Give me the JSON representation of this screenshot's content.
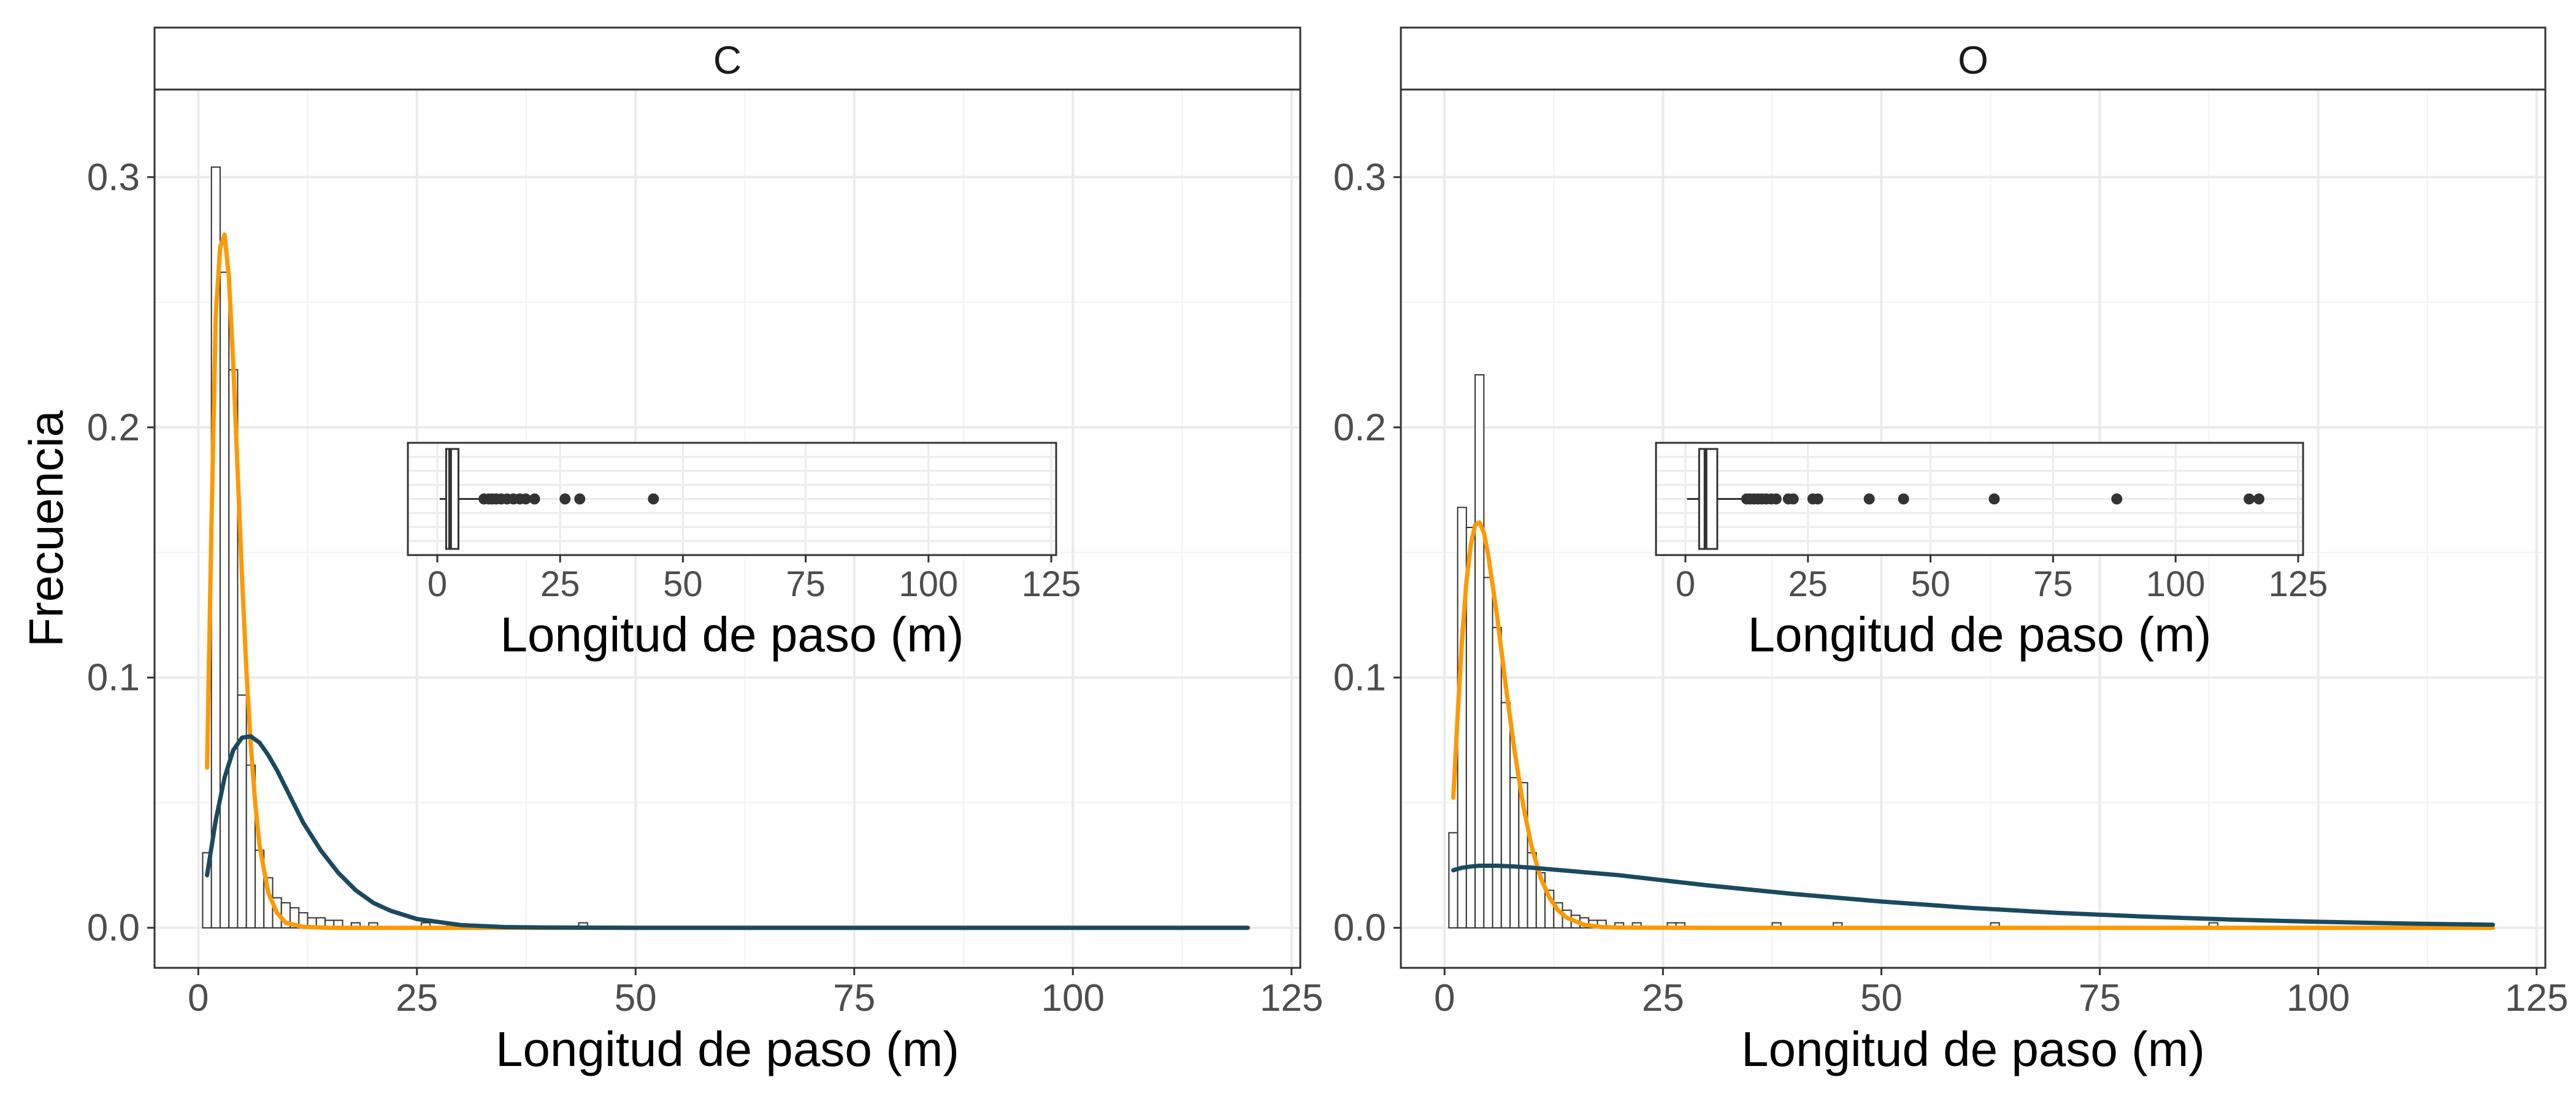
{
  "figure": {
    "ylabel": "Frecuencia",
    "colors": {
      "panel_border": "#333333",
      "strip_fill": "#ffffff",
      "grid_major": "#ebebeb",
      "grid_minor": "#f5f5f5",
      "bar_fill": "#ffffff",
      "bar_stroke": "#333333",
      "curve_orange": "#ff9900",
      "curve_navy": "#1a4a60",
      "text": "#4d4d4d",
      "box_outlier": "#333333"
    }
  },
  "chart_data": [
    {
      "type": "histogram",
      "panel": "C",
      "xlabel": "Longitud de paso (m)",
      "ylabel": "Frecuencia",
      "xlim": [
        -5,
        126
      ],
      "ylim": [
        -0.016,
        0.335
      ],
      "xticks": [
        0,
        25,
        50,
        75,
        100,
        125
      ],
      "yticks": [
        0.0,
        0.1,
        0.2,
        0.3
      ],
      "ytick_labels": [
        "0.0",
        "0.1",
        "0.2",
        "0.3"
      ],
      "grid": true,
      "bin_width": 1,
      "bins": [
        {
          "x0": 0.5,
          "value": 0.03
        },
        {
          "x0": 1.5,
          "value": 0.304
        },
        {
          "x0": 2.5,
          "value": 0.262
        },
        {
          "x0": 3.5,
          "value": 0.223
        },
        {
          "x0": 4.5,
          "value": 0.093
        },
        {
          "x0": 5.5,
          "value": 0.065
        },
        {
          "x0": 6.5,
          "value": 0.031
        },
        {
          "x0": 7.5,
          "value": 0.02
        },
        {
          "x0": 8.5,
          "value": 0.012
        },
        {
          "x0": 9.5,
          "value": 0.01
        },
        {
          "x0": 10.5,
          "value": 0.008
        },
        {
          "x0": 11.5,
          "value": 0.006
        },
        {
          "x0": 12.5,
          "value": 0.004
        },
        {
          "x0": 13.5,
          "value": 0.004
        },
        {
          "x0": 14.5,
          "value": 0.003
        },
        {
          "x0": 15.5,
          "value": 0.003
        },
        {
          "x0": 17.5,
          "value": 0.002
        },
        {
          "x0": 19.5,
          "value": 0.002
        },
        {
          "x0": 25.5,
          "value": 0.002
        },
        {
          "x0": 28.5,
          "value": 0.002
        },
        {
          "x0": 43.5,
          "value": 0.002
        }
      ],
      "series": [
        {
          "style": "orange",
          "x": [
            1,
            1.5,
            2,
            2.5,
            3,
            3.5,
            4,
            4.5,
            5,
            5.5,
            6,
            6.5,
            7,
            8,
            9,
            10,
            12,
            15,
            20,
            30,
            60,
            120
          ],
          "y": [
            0.064,
            0.16,
            0.245,
            0.272,
            0.277,
            0.26,
            0.225,
            0.182,
            0.14,
            0.103,
            0.073,
            0.05,
            0.033,
            0.014,
            0.006,
            0.002,
            0.0004,
            0.0,
            0.0,
            0.0,
            0.0,
            0.0
          ]
        },
        {
          "style": "navy",
          "x": [
            1,
            2,
            3,
            4,
            5,
            6,
            7,
            8,
            9,
            10,
            12,
            14,
            16,
            18,
            20,
            22,
            25,
            30,
            35,
            40,
            50,
            60,
            80,
            120
          ],
          "y": [
            0.021,
            0.043,
            0.06,
            0.071,
            0.076,
            0.0765,
            0.074,
            0.069,
            0.063,
            0.056,
            0.042,
            0.031,
            0.022,
            0.015,
            0.01,
            0.0068,
            0.0035,
            0.0011,
            0.0003,
            0.0001,
            0.0,
            0.0,
            0.0,
            0.0
          ]
        }
      ],
      "inset_boxplot": {
        "xlabel": "Longitud de paso (m)",
        "xlim": [
          -6,
          126
        ],
        "xticks": [
          0,
          25,
          50,
          75,
          100,
          125
        ],
        "whisker_low": 0.5,
        "q1": 1.8,
        "median": 2.6,
        "q3": 4.3,
        "whisker_high": 8.5,
        "outliers": [
          9.5,
          10.5,
          11.2,
          12,
          13,
          14.2,
          15.5,
          16.8,
          18,
          19.8,
          26,
          29,
          44
        ]
      }
    },
    {
      "type": "histogram",
      "panel": "O",
      "xlabel": "Longitud de paso (m)",
      "ylabel": "",
      "xlim": [
        -5,
        126
      ],
      "ylim": [
        -0.016,
        0.335
      ],
      "xticks": [
        0,
        25,
        50,
        75,
        100,
        125
      ],
      "yticks": [
        0.0,
        0.1,
        0.2,
        0.3
      ],
      "ytick_labels": [
        "0.0",
        "0.1",
        "0.2",
        "0.3"
      ],
      "grid": true,
      "bin_width": 1,
      "bins": [
        {
          "x0": 0.5,
          "value": 0.038
        },
        {
          "x0": 1.5,
          "value": 0.168
        },
        {
          "x0": 2.5,
          "value": 0.16
        },
        {
          "x0": 3.5,
          "value": 0.221
        },
        {
          "x0": 4.5,
          "value": 0.14
        },
        {
          "x0": 5.5,
          "value": 0.12
        },
        {
          "x0": 6.5,
          "value": 0.09
        },
        {
          "x0": 7.5,
          "value": 0.06
        },
        {
          "x0": 8.5,
          "value": 0.058
        },
        {
          "x0": 9.5,
          "value": 0.03
        },
        {
          "x0": 10.5,
          "value": 0.022
        },
        {
          "x0": 11.5,
          "value": 0.015
        },
        {
          "x0": 12.5,
          "value": 0.01
        },
        {
          "x0": 13.5,
          "value": 0.007
        },
        {
          "x0": 14.5,
          "value": 0.005
        },
        {
          "x0": 15.5,
          "value": 0.004
        },
        {
          "x0": 16.5,
          "value": 0.003
        },
        {
          "x0": 17.5,
          "value": 0.003
        },
        {
          "x0": 19.5,
          "value": 0.002
        },
        {
          "x0": 21.5,
          "value": 0.002
        },
        {
          "x0": 25.5,
          "value": 0.002
        },
        {
          "x0": 26.5,
          "value": 0.002
        },
        {
          "x0": 37.5,
          "value": 0.002
        },
        {
          "x0": 44.5,
          "value": 0.002
        },
        {
          "x0": 62.5,
          "value": 0.002
        },
        {
          "x0": 87.5,
          "value": 0.002
        },
        {
          "x0": 114.5,
          "value": 0.002
        },
        {
          "x0": 116.5,
          "value": 0.002
        }
      ],
      "series": [
        {
          "style": "orange",
          "x": [
            1,
            1.5,
            2,
            2.5,
            3,
            3.5,
            4,
            4.5,
            5,
            6,
            7,
            8,
            9,
            10,
            11,
            12,
            13,
            14,
            16,
            18,
            20,
            30,
            60,
            120
          ],
          "y": [
            0.052,
            0.085,
            0.115,
            0.138,
            0.153,
            0.161,
            0.162,
            0.158,
            0.149,
            0.125,
            0.097,
            0.071,
            0.049,
            0.032,
            0.02,
            0.012,
            0.007,
            0.004,
            0.0012,
            0.0003,
            0.0001,
            0.0,
            0.0,
            0.0
          ]
        },
        {
          "style": "navy",
          "x": [
            1,
            2,
            3,
            4,
            6,
            8,
            10,
            15,
            20,
            30,
            40,
            50,
            60,
            70,
            80,
            90,
            100,
            110,
            120
          ],
          "y": [
            0.023,
            0.024,
            0.0245,
            0.0248,
            0.0248,
            0.0245,
            0.024,
            0.0225,
            0.021,
            0.017,
            0.0135,
            0.0105,
            0.008,
            0.006,
            0.0045,
            0.0033,
            0.0024,
            0.0017,
            0.0012
          ]
        }
      ],
      "inset_boxplot": {
        "xlabel": "Longitud de paso (m)",
        "xlim": [
          -6,
          126
        ],
        "xticks": [
          0,
          25,
          50,
          75,
          100,
          125
        ],
        "whisker_low": 0.3,
        "q1": 2.8,
        "median": 4.1,
        "q3": 6.5,
        "whisker_high": 12,
        "outliers": [
          12.5,
          13.2,
          14,
          14.8,
          15.6,
          16.5,
          17.5,
          18.5,
          21,
          22,
          26,
          27,
          37.5,
          44.5,
          63,
          88,
          115,
          117
        ]
      }
    }
  ]
}
